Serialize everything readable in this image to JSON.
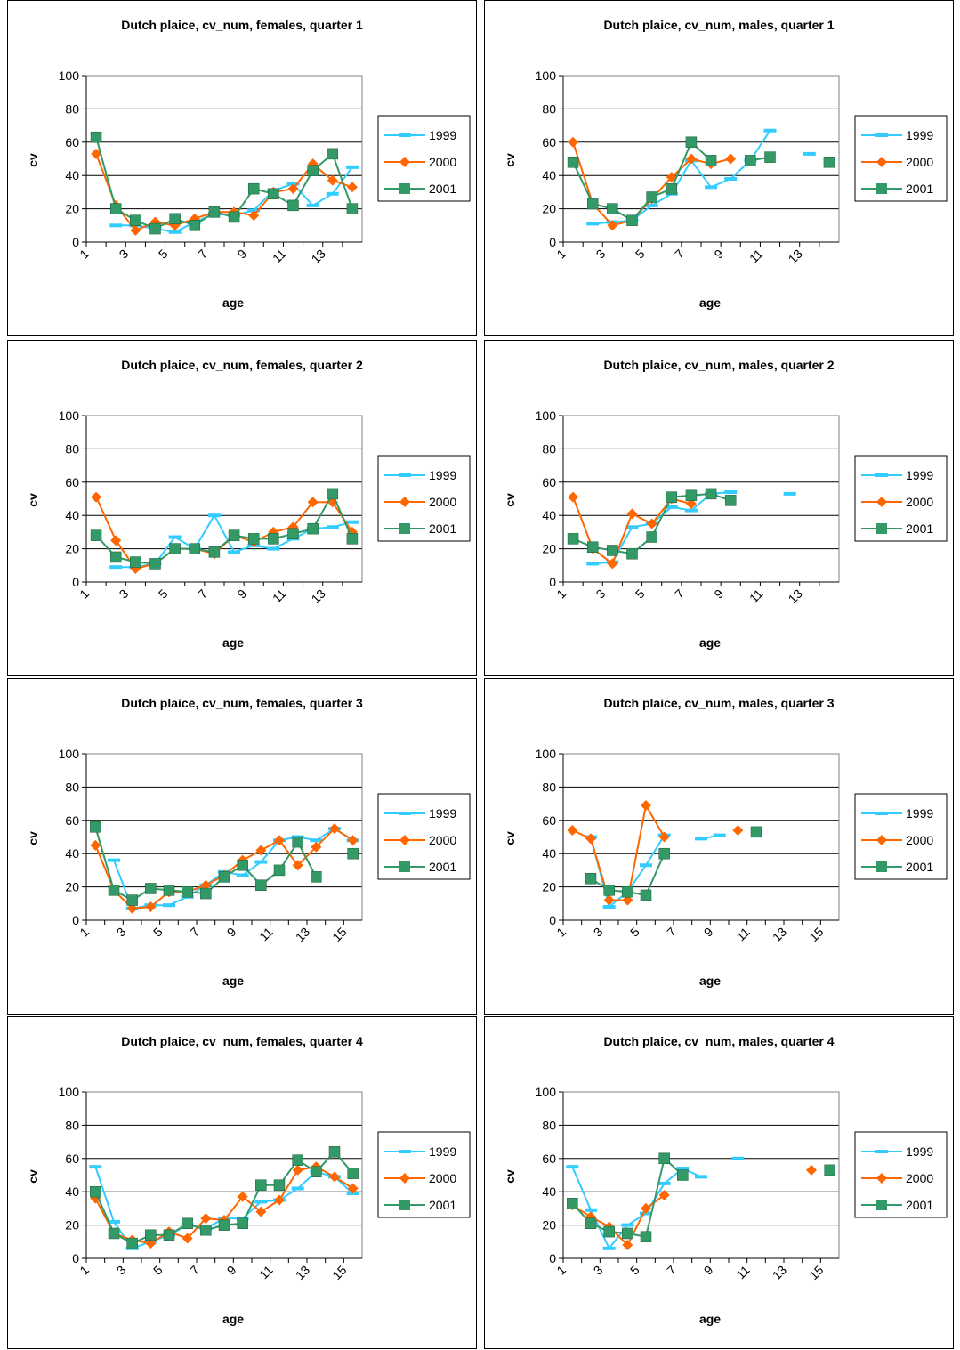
{
  "chart_data": [
    {
      "type": "line",
      "title": "Dutch plaice, cv_num, females, quarter 1",
      "xlabel": "age",
      "ylabel": "cv",
      "categories": [
        1,
        null,
        3,
        null,
        5,
        null,
        7,
        null,
        9,
        null,
        11,
        null,
        13,
        null
      ],
      "ylim": [
        0,
        100
      ],
      "yticks": [
        0,
        20,
        40,
        60,
        80,
        100
      ],
      "grid": true,
      "series": [
        {
          "name": "1999",
          "color": "#33ccff",
          "values": [
            null,
            10,
            10,
            8,
            6,
            12,
            17,
            16,
            19,
            31,
            35,
            22,
            29,
            45
          ]
        },
        {
          "name": "2000",
          "color": "#ff6600",
          "values": [
            53,
            22,
            7,
            12,
            10,
            14,
            18,
            18,
            16,
            30,
            32,
            47,
            37,
            33
          ]
        },
        {
          "name": "2001",
          "color": "#339966",
          "values": [
            63,
            20,
            13,
            8,
            14,
            10,
            18,
            15,
            32,
            29,
            22,
            43,
            53,
            20
          ]
        }
      ]
    },
    {
      "type": "line",
      "title": "Dutch plaice, cv_num, males, quarter 1",
      "xlabel": "age",
      "ylabel": "cv",
      "categories": [
        1,
        null,
        3,
        null,
        5,
        null,
        7,
        null,
        9,
        null,
        11,
        null,
        13,
        null
      ],
      "ylim": [
        0,
        100
      ],
      "yticks": [
        0,
        20,
        40,
        60,
        80,
        100
      ],
      "grid": true,
      "series": [
        {
          "name": "1999",
          "color": "#33ccff",
          "values": [
            null,
            11,
            12,
            13,
            22,
            29,
            49,
            33,
            38,
            49,
            67,
            null,
            53,
            null
          ]
        },
        {
          "name": "2000",
          "color": "#ff6600",
          "values": [
            60,
            23,
            10,
            13,
            26,
            39,
            50,
            47,
            50,
            null,
            null,
            null,
            null,
            null
          ]
        },
        {
          "name": "2001",
          "color": "#339966",
          "values": [
            48,
            23,
            20,
            13,
            27,
            32,
            60,
            49,
            null,
            49,
            51,
            null,
            null,
            48
          ]
        }
      ]
    },
    {
      "type": "line",
      "title": "Dutch plaice, cv_num, females, quarter 2",
      "xlabel": "age",
      "ylabel": "cv",
      "categories": [
        1,
        null,
        3,
        null,
        5,
        null,
        7,
        null,
        9,
        null,
        11,
        null,
        13,
        null
      ],
      "ylim": [
        0,
        100
      ],
      "yticks": [
        0,
        20,
        40,
        60,
        80,
        100
      ],
      "grid": true,
      "series": [
        {
          "name": "1999",
          "color": "#33ccff",
          "values": [
            null,
            9,
            9,
            11,
            27,
            20,
            40,
            18,
            22,
            20,
            26,
            32,
            33,
            36
          ]
        },
        {
          "name": "2000",
          "color": "#ff6600",
          "values": [
            51,
            25,
            8,
            11,
            20,
            20,
            17,
            28,
            24,
            30,
            33,
            48,
            48,
            30
          ]
        },
        {
          "name": "2001",
          "color": "#339966",
          "values": [
            28,
            15,
            12,
            11,
            20,
            20,
            18,
            28,
            26,
            26,
            29,
            32,
            53,
            26
          ]
        }
      ]
    },
    {
      "type": "line",
      "title": "Dutch plaice, cv_num, males, quarter 2",
      "xlabel": "age",
      "ylabel": "cv",
      "categories": [
        1,
        null,
        3,
        null,
        5,
        null,
        7,
        null,
        9,
        null,
        11,
        null,
        13,
        null
      ],
      "ylim": [
        0,
        100
      ],
      "yticks": [
        0,
        20,
        40,
        60,
        80,
        100
      ],
      "grid": true,
      "series": [
        {
          "name": "1999",
          "color": "#33ccff",
          "values": [
            null,
            11,
            12,
            33,
            35,
            45,
            43,
            53,
            54,
            null,
            null,
            53,
            null,
            null
          ]
        },
        {
          "name": "2000",
          "color": "#ff6600",
          "values": [
            51,
            20,
            11,
            41,
            35,
            50,
            47,
            null,
            null,
            null,
            null,
            null,
            null,
            null
          ]
        },
        {
          "name": "2001",
          "color": "#339966",
          "values": [
            26,
            21,
            19,
            17,
            27,
            51,
            52,
            53,
            49,
            null,
            null,
            null,
            null,
            null
          ]
        }
      ]
    },
    {
      "type": "line",
      "title": "Dutch plaice, cv_num, females, quarter 3",
      "xlabel": "age",
      "ylabel": "cv",
      "categories": [
        1,
        null,
        3,
        null,
        5,
        null,
        7,
        null,
        9,
        null,
        11,
        null,
        13,
        null,
        15
      ],
      "ylim": [
        0,
        100
      ],
      "yticks": [
        0,
        20,
        40,
        60,
        80,
        100
      ],
      "grid": true,
      "series": [
        {
          "name": "1999",
          "color": "#33ccff",
          "values": [
            null,
            36,
            7,
            9,
            9,
            14,
            21,
            29,
            27,
            35,
            48,
            50,
            48,
            55,
            48
          ]
        },
        {
          "name": "2000",
          "color": "#ff6600",
          "values": [
            45,
            18,
            7,
            8,
            17,
            17,
            21,
            27,
            36,
            42,
            48,
            33,
            44,
            55,
            48
          ]
        },
        {
          "name": "2001",
          "color": "#339966",
          "values": [
            56,
            18,
            12,
            19,
            18,
            17,
            16,
            26,
            33,
            21,
            30,
            47,
            26,
            null,
            40
          ]
        }
      ]
    },
    {
      "type": "line",
      "title": "Dutch plaice, cv_num, males, quarter 3",
      "xlabel": "age",
      "ylabel": "cv",
      "categories": [
        1,
        null,
        3,
        null,
        5,
        null,
        7,
        null,
        9,
        null,
        11,
        null,
        13,
        null,
        15
      ],
      "ylim": [
        0,
        100
      ],
      "yticks": [
        0,
        20,
        40,
        60,
        80,
        100
      ],
      "grid": true,
      "series": [
        {
          "name": "1999",
          "color": "#33ccff",
          "values": [
            null,
            50,
            8,
            17,
            33,
            51,
            null,
            49,
            51,
            null,
            null,
            null,
            null,
            null,
            null
          ]
        },
        {
          "name": "2000",
          "color": "#ff6600",
          "values": [
            54,
            49,
            12,
            12,
            69,
            50,
            null,
            null,
            null,
            54,
            null,
            null,
            null,
            null,
            null
          ]
        },
        {
          "name": "2001",
          "color": "#339966",
          "values": [
            null,
            25,
            18,
            17,
            15,
            40,
            null,
            null,
            null,
            null,
            53,
            null,
            null,
            null,
            null
          ]
        }
      ]
    },
    {
      "type": "line",
      "title": "Dutch plaice, cv_num, females, quarter 4",
      "xlabel": "age",
      "ylabel": "cv",
      "categories": [
        1,
        null,
        3,
        null,
        5,
        null,
        7,
        null,
        9,
        null,
        11,
        null,
        13,
        null,
        15
      ],
      "ylim": [
        0,
        100
      ],
      "yticks": [
        0,
        20,
        40,
        60,
        80,
        100
      ],
      "grid": true,
      "series": [
        {
          "name": "1999",
          "color": "#33ccff",
          "values": [
            55,
            22,
            6,
            10,
            14,
            20,
            18,
            24,
            24,
            34,
            35,
            42,
            52,
            49,
            39
          ]
        },
        {
          "name": "2000",
          "color": "#ff6600",
          "values": [
            36,
            15,
            11,
            9,
            16,
            12,
            24,
            23,
            37,
            28,
            35,
            53,
            55,
            49,
            42
          ]
        },
        {
          "name": "2001",
          "color": "#339966",
          "values": [
            40,
            15,
            9,
            14,
            14,
            21,
            17,
            20,
            21,
            44,
            44,
            59,
            52,
            64,
            51
          ]
        }
      ]
    },
    {
      "type": "line",
      "title": "Dutch plaice, cv_num, males, quarter 4",
      "xlabel": "age",
      "ylabel": "cv",
      "categories": [
        1,
        null,
        3,
        null,
        5,
        null,
        7,
        null,
        9,
        null,
        11,
        null,
        13,
        null,
        15
      ],
      "ylim": [
        0,
        100
      ],
      "yticks": [
        0,
        20,
        40,
        60,
        80,
        100
      ],
      "grid": true,
      "series": [
        {
          "name": "1999",
          "color": "#33ccff",
          "values": [
            55,
            29,
            6,
            20,
            27,
            45,
            54,
            49,
            null,
            60,
            null,
            null,
            null,
            null,
            null
          ]
        },
        {
          "name": "2000",
          "color": "#ff6600",
          "values": [
            32,
            25,
            19,
            8,
            30,
            38,
            null,
            null,
            null,
            null,
            null,
            null,
            null,
            53,
            null
          ]
        },
        {
          "name": "2001",
          "color": "#339966",
          "values": [
            33,
            21,
            16,
            15,
            13,
            60,
            50,
            null,
            null,
            null,
            null,
            null,
            null,
            null,
            53
          ]
        }
      ]
    }
  ]
}
